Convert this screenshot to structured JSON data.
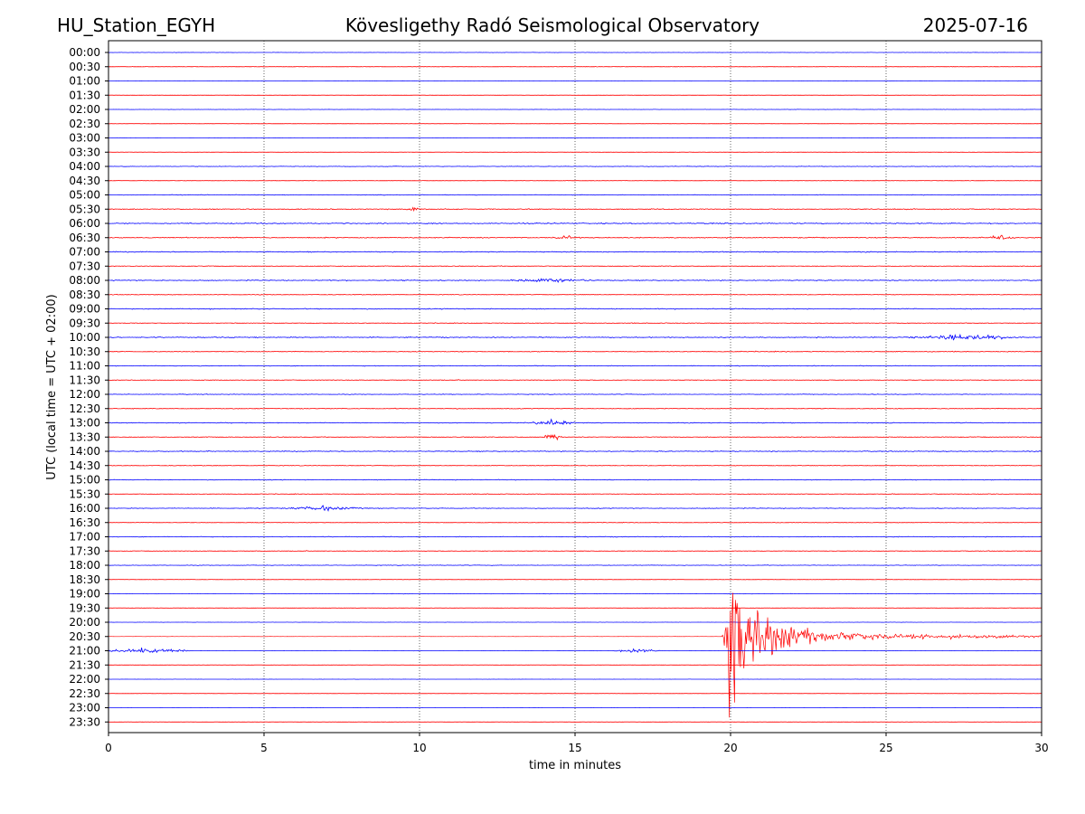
{
  "header": {
    "station": "HU_Station_EGYH",
    "observatory": "Kövesligethy Radó Seismological Observatory",
    "date": "2025-07-16"
  },
  "chart_data": {
    "type": "line",
    "title": "Kövesligethy Radó Seismological Observatory",
    "xlabel": "time in minutes",
    "ylabel": "UTC (local time = UTC + 02:00)",
    "xlim": [
      0,
      30
    ],
    "x_ticks": [
      "0",
      "5",
      "10",
      "15",
      "20",
      "25",
      "30"
    ],
    "x_tick_values": [
      0,
      5,
      10,
      15,
      20,
      25,
      30
    ],
    "grid": "vertical dotted at major x ticks",
    "row_labels": [
      "00:00",
      "00:30",
      "01:00",
      "01:30",
      "02:00",
      "02:30",
      "03:00",
      "03:30",
      "04:00",
      "04:30",
      "05:00",
      "05:30",
      "06:00",
      "06:30",
      "07:00",
      "07:30",
      "08:00",
      "08:30",
      "09:00",
      "09:30",
      "10:00",
      "10:30",
      "11:00",
      "11:30",
      "12:00",
      "12:30",
      "13:00",
      "13:30",
      "14:00",
      "14:30",
      "15:00",
      "15:30",
      "16:00",
      "16:30",
      "17:00",
      "17:30",
      "18:00",
      "18:30",
      "19:00",
      "19:30",
      "20:00",
      "20:30",
      "21:00",
      "21:30",
      "22:00",
      "22:30",
      "23:00",
      "23:30"
    ],
    "series_colors": [
      "#0000ff",
      "#ff0000"
    ],
    "base_noise": [
      0.2,
      0.25,
      0.2,
      0.15,
      0.18,
      0.15,
      0.2,
      0.2,
      0.35,
      0.25,
      0.4,
      0.6,
      0.7,
      0.65,
      0.6,
      0.45,
      0.6,
      0.45,
      0.6,
      0.45,
      0.6,
      0.5,
      0.45,
      0.45,
      0.4,
      0.5,
      0.5,
      0.5,
      0.55,
      0.45,
      0.45,
      0.4,
      0.45,
      0.35,
      0.45,
      0.4,
      0.35,
      0.25,
      0.25,
      0.2,
      0.15,
      0.15,
      0.2,
      0.12,
      0.12,
      0.12,
      0.12,
      0.12
    ],
    "events": [
      {
        "row": 11,
        "minute": 9.8,
        "amplitude": 5,
        "duration": 0.3
      },
      {
        "row": 13,
        "minute": 14.7,
        "amplitude": 4,
        "duration": 0.5
      },
      {
        "row": 13,
        "minute": 28.7,
        "amplitude": 4,
        "duration": 0.5
      },
      {
        "row": 16,
        "minute": 14.2,
        "amplitude": 4,
        "duration": 1.5
      },
      {
        "row": 20,
        "minute": 27.5,
        "amplitude": 5,
        "duration": 2.0
      },
      {
        "row": 26,
        "minute": 14.3,
        "amplitude": 6,
        "duration": 0.8
      },
      {
        "row": 27,
        "minute": 14.3,
        "amplitude": 6,
        "duration": 0.4
      },
      {
        "row": 32,
        "minute": 7.0,
        "amplitude": 4,
        "duration": 1.5
      },
      {
        "row": 42,
        "minute": 1.2,
        "amplitude": 6,
        "duration": 1.5
      },
      {
        "row": 42,
        "minute": 17.0,
        "amplitude": 4,
        "duration": 0.8
      }
    ],
    "earthquake": {
      "row": 41,
      "onset_minute": 19.7,
      "peak_minute": 19.9,
      "coda_end_minute": 30,
      "peak_amplitude_rows": 10,
      "coda_amplitude_rows": 0.8
    }
  }
}
